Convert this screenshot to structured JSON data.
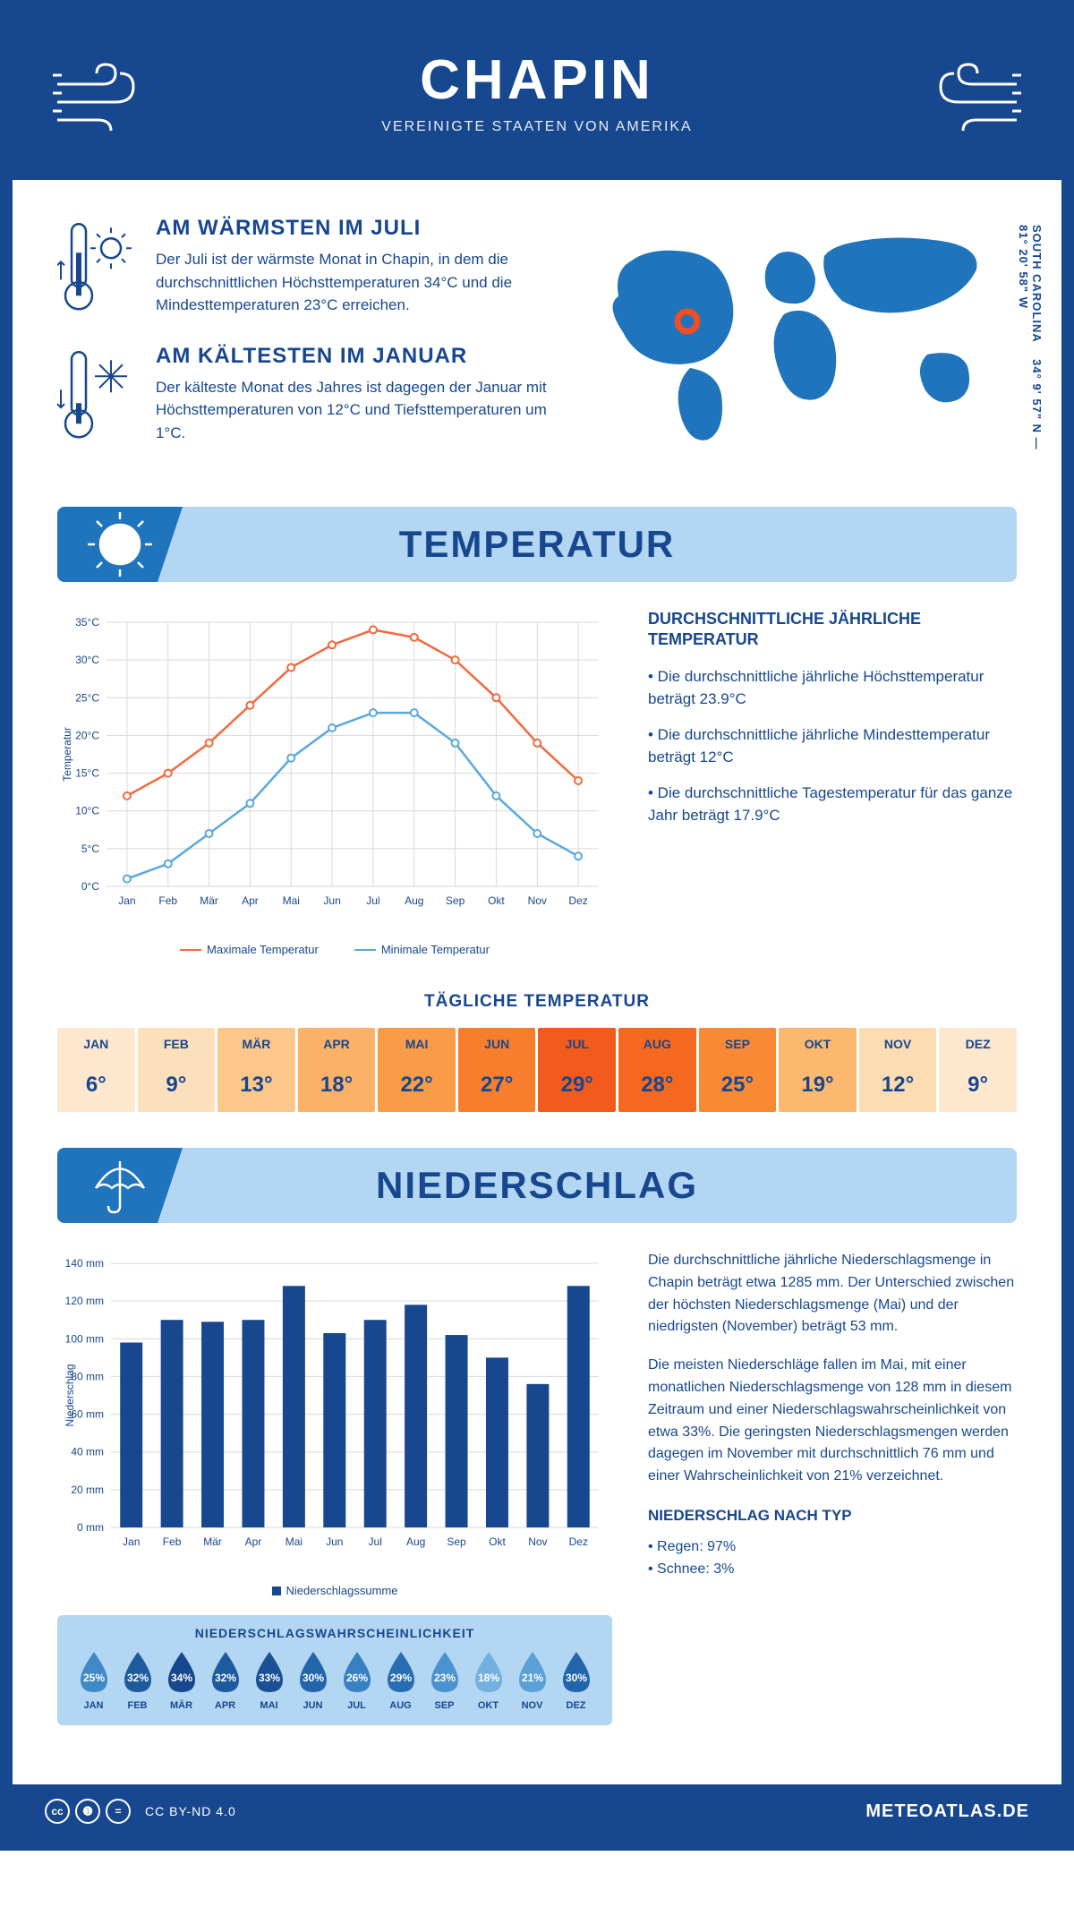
{
  "header": {
    "title": "CHAPIN",
    "subtitle": "VEREINIGTE STAATEN VON AMERIKA"
  },
  "coords": {
    "lat": "34° 9' 57\" N",
    "lon": "81° 20' 58\" W",
    "region": "SOUTH CAROLINA"
  },
  "facts": {
    "warm": {
      "title": "AM WÄRMSTEN IM JULI",
      "text": "Der Juli ist der wärmste Monat in Chapin, in dem die durchschnittlichen Höchsttemperaturen 34°C und die Mindesttemperaturen 23°C erreichen."
    },
    "cold": {
      "title": "AM KÄLTESTEN IM JANUAR",
      "text": "Der kälteste Monat des Jahres ist dagegen der Januar mit Höchsttemperaturen von 12°C und Tiefsttemperaturen um 1°C."
    }
  },
  "sections": {
    "temp": "TEMPERATUR",
    "precip": "NIEDERSCHLAG"
  },
  "temp_chart": {
    "months": [
      "Jan",
      "Feb",
      "Mär",
      "Apr",
      "Mai",
      "Jun",
      "Jul",
      "Aug",
      "Sep",
      "Okt",
      "Nov",
      "Dez"
    ],
    "max": [
      12,
      15,
      19,
      24,
      29,
      32,
      34,
      33,
      30,
      25,
      19,
      14
    ],
    "min": [
      1,
      3,
      7,
      11,
      17,
      21,
      23,
      23,
      19,
      12,
      7,
      4
    ],
    "max_color": "#f26a3e",
    "min_color": "#5aa8e0",
    "grid_color": "#d9d9d9",
    "axis_color": "#17478e",
    "ylim": [
      0,
      35
    ],
    "ytick_step": 5,
    "ylabel": "Temperatur",
    "legend_max": "Maximale Temperatur",
    "legend_min": "Minimale Temperatur"
  },
  "temp_info": {
    "title": "DURCHSCHNITTLICHE JÄHRLICHE TEMPERATUR",
    "b1": "• Die durchschnittliche jährliche Höchsttemperatur beträgt 23.9°C",
    "b2": "• Die durchschnittliche jährliche Mindesttemperatur beträgt 12°C",
    "b3": "• Die durchschnittliche Tagestemperatur für das ganze Jahr beträgt 17.9°C"
  },
  "daily": {
    "title": "TÄGLICHE TEMPERATUR",
    "months": [
      "JAN",
      "FEB",
      "MÄR",
      "APR",
      "MAI",
      "JUN",
      "JUL",
      "AUG",
      "SEP",
      "OKT",
      "NOV",
      "DEZ"
    ],
    "values": [
      "6°",
      "9°",
      "13°",
      "18°",
      "22°",
      "27°",
      "29°",
      "28°",
      "25°",
      "19°",
      "12°",
      "9°"
    ],
    "colors": [
      "#fde8cf",
      "#fcdfbb",
      "#fcc78b",
      "#fbb168",
      "#fa9b47",
      "#f77e2d",
      "#f25b1c",
      "#f4691f",
      "#f88a36",
      "#fbb86e",
      "#fcdcb3",
      "#fde8cf"
    ]
  },
  "precip_chart": {
    "months": [
      "Jan",
      "Feb",
      "Mär",
      "Apr",
      "Mai",
      "Jun",
      "Jul",
      "Aug",
      "Sep",
      "Okt",
      "Nov",
      "Dez"
    ],
    "values": [
      98,
      110,
      109,
      110,
      128,
      103,
      110,
      118,
      102,
      90,
      76,
      128
    ],
    "ylim": [
      0,
      140
    ],
    "ytick_step": 20,
    "bar_color": "#17478e",
    "grid_color": "#d9d9d9",
    "ylabel": "Niederschlag",
    "legend": "Niederschlagssumme"
  },
  "precip_text": {
    "p1": "Die durchschnittliche jährliche Niederschlagsmenge in Chapin beträgt etwa 1285 mm. Der Unterschied zwischen der höchsten Niederschlagsmenge (Mai) und der niedrigsten (November) beträgt 53 mm.",
    "p2": "Die meisten Niederschläge fallen im Mai, mit einer monatlichen Niederschlagsmenge von 128 mm in diesem Zeitraum und einer Niederschlagswahrscheinlichkeit von etwa 33%. Die geringsten Niederschlagsmengen werden dagegen im November mit durchschnittlich 76 mm und einer Wahrscheinlichkeit von 21% verzeichnet.",
    "type_title": "NIEDERSCHLAG NACH TYP",
    "type1": "• Regen: 97%",
    "type2": "• Schnee: 3%"
  },
  "prob": {
    "title": "NIEDERSCHLAGSWAHRSCHEINLICHKEIT",
    "months": [
      "JAN",
      "FEB",
      "MÄR",
      "APR",
      "MAI",
      "JUN",
      "JUL",
      "AUG",
      "SEP",
      "OKT",
      "NOV",
      "DEZ"
    ],
    "pct": [
      "25%",
      "32%",
      "34%",
      "32%",
      "33%",
      "30%",
      "26%",
      "29%",
      "23%",
      "18%",
      "21%",
      "30%"
    ],
    "colors": [
      "#3f89c9",
      "#1d5a9e",
      "#17478e",
      "#1d5a9e",
      "#1a5095",
      "#2365ab",
      "#3780c2",
      "#286cb2",
      "#4b93d0",
      "#73b0df",
      "#5aa1d7",
      "#2365ab"
    ]
  },
  "footer": {
    "license": "CC BY-ND 4.0",
    "site": "METEOATLAS.DE"
  }
}
